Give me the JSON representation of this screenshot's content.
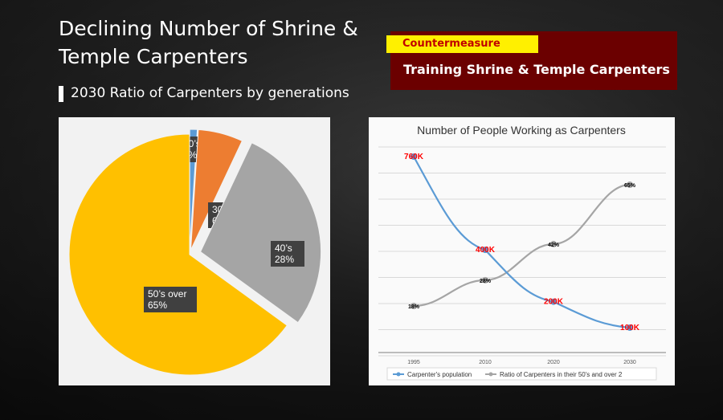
{
  "slide": {
    "title_line1": "Declining Number of Shrine &",
    "title_line2": "Temple Carpenters",
    "subtitle": "2030 Ratio of Carpenters by generations",
    "countermeasure_tag": "Countermeasure",
    "countermeasure_text": "Training Shrine & Temple Carpenters"
  },
  "chart_data": [
    {
      "type": "pie",
      "slices": [
        {
          "label": "20’s",
          "value_label": "1%",
          "value": 1,
          "color": "#5b9bd5"
        },
        {
          "label": "30’s",
          "value_label": "6%",
          "value": 6,
          "color": "#ed7d31"
        },
        {
          "label": "40’s",
          "value_label": "28%",
          "value": 28,
          "color": "#a5a5a5"
        },
        {
          "label": "50’s over",
          "value_label": "65%",
          "value": 65,
          "color": "#ffc000"
        }
      ]
    },
    {
      "type": "line",
      "title": "Number of People Working as Carpenters",
      "x": [
        "1995",
        "2010",
        "2020",
        "2030"
      ],
      "series": [
        {
          "name": "Carpenter's population",
          "values": [
            760,
            400,
            200,
            100
          ],
          "labels": [
            "760K",
            "400K",
            "200K",
            "100K"
          ],
          "color": "#5b9bd5"
        },
        {
          "name": "Ratio of Carpenters in their 50's and over 2",
          "values": [
            18,
            28,
            42,
            65
          ],
          "labels": [
            "18%",
            "28%",
            "42%",
            "65%"
          ],
          "color": "#a5a5a5"
        }
      ],
      "grid": true,
      "legend": "bottom"
    }
  ]
}
